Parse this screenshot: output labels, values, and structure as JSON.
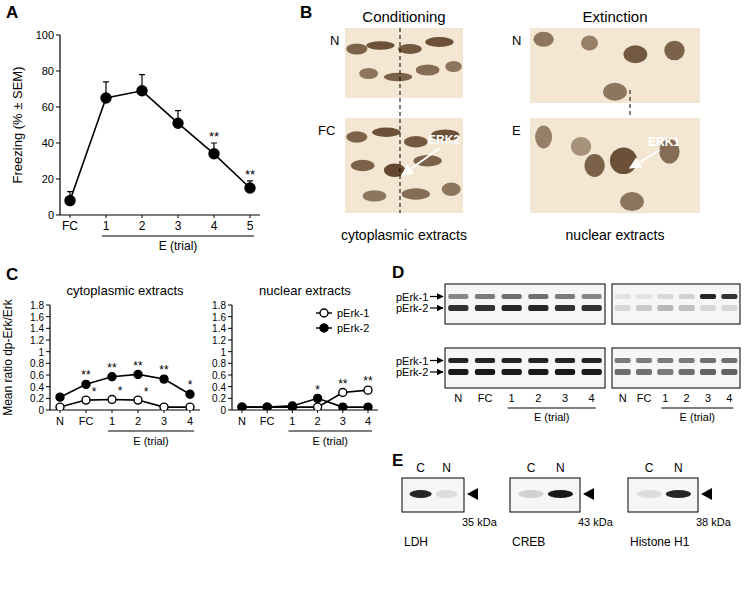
{
  "chart_data": [
    {
      "type": "line",
      "y_label": "Freezing (% ± SEM)",
      "categories": [
        "FC",
        "1",
        "2",
        "3",
        "4",
        "5"
      ],
      "category_group": {
        "label": "E (trial)",
        "from": "1",
        "to": "5"
      },
      "values": [
        8,
        65,
        69,
        51,
        34,
        15
      ],
      "errors": [
        5,
        9,
        9,
        7,
        6,
        4
      ],
      "color": "#000000",
      "marker": "circle",
      "line_style": "solid",
      "ylim": [
        0,
        100
      ],
      "yticks": [
        0,
        20,
        40,
        60,
        80,
        100
      ],
      "annotations": [
        {
          "text": "**",
          "category": "4"
        },
        {
          "text": "**",
          "category": "5"
        }
      ]
    },
    {
      "type": "line",
      "title": "cytoplasmic extracts",
      "y_label": "Mean ratio dp-Erk/Erk",
      "categories": [
        "N",
        "FC",
        "1",
        "2",
        "3",
        "4"
      ],
      "category_group": {
        "label": "E (trial)",
        "from": "1",
        "to": "4"
      },
      "ylim": [
        0,
        1.8
      ],
      "yticks": [
        0,
        0.2,
        0.4,
        0.6,
        0.8,
        1,
        1.2,
        1.4,
        1.6,
        1.8
      ],
      "series": [
        {
          "name": "pErk-1",
          "color": "#000000",
          "marker": "open-circle",
          "line_style": "solid",
          "values": [
            0.05,
            0.17,
            0.18,
            0.17,
            0.05,
            0.05
          ],
          "errors": [
            0.02,
            0.04,
            0.04,
            0.04,
            0.03,
            0.03
          ]
        },
        {
          "name": "pErk-2",
          "color": "#000000",
          "marker": "circle",
          "line_style": "solid",
          "values": [
            0.22,
            0.44,
            0.57,
            0.61,
            0.53,
            0.27
          ],
          "errors": [
            0.04,
            0.05,
            0.05,
            0.05,
            0.05,
            0.05
          ]
        }
      ],
      "annotations": [
        {
          "text": "**",
          "category": "FC",
          "series": "pErk-2"
        },
        {
          "text": "**",
          "category": "1",
          "series": "pErk-2"
        },
        {
          "text": "**",
          "category": "2",
          "series": "pErk-2"
        },
        {
          "text": "**",
          "category": "3",
          "series": "pErk-2"
        },
        {
          "text": "*",
          "category": "4",
          "series": "pErk-2"
        },
        {
          "text": "*",
          "category": "FC",
          "series": "pErk-1"
        },
        {
          "text": "*",
          "category": "1",
          "series": "pErk-1"
        },
        {
          "text": "*",
          "category": "2",
          "series": "pErk-1"
        }
      ]
    },
    {
      "type": "line",
      "title": "nuclear extracts",
      "categories": [
        "N",
        "FC",
        "1",
        "2",
        "3",
        "4"
      ],
      "category_group": {
        "label": "E (trial)",
        "from": "1",
        "to": "4"
      },
      "ylim": [
        0,
        1.8
      ],
      "yticks": [
        0,
        0.2,
        0.4,
        0.6,
        0.8,
        1,
        1.2,
        1.4,
        1.6,
        1.8
      ],
      "legend": "upper right",
      "series": [
        {
          "name": "pErk-1",
          "color": "#000000",
          "marker": "open-circle",
          "line_style": "solid",
          "values": [
            0.05,
            0.05,
            0.05,
            0.05,
            0.3,
            0.34
          ],
          "errors": [
            0.02,
            0.02,
            0.02,
            0.02,
            0.04,
            0.05
          ]
        },
        {
          "name": "pErk-2",
          "color": "#000000",
          "marker": "circle",
          "line_style": "solid",
          "values": [
            0.05,
            0.05,
            0.07,
            0.2,
            0.05,
            0.05
          ],
          "errors": [
            0.02,
            0.02,
            0.03,
            0.04,
            0.02,
            0.02
          ]
        }
      ],
      "annotations": [
        {
          "text": "*",
          "category": "2",
          "series": "pErk-2"
        },
        {
          "text": "**",
          "category": "3",
          "series": "pErk-1"
        },
        {
          "text": "**",
          "category": "4",
          "series": "pErk-1"
        }
      ]
    }
  ],
  "figure": {
    "panel_labels": [
      "A",
      "B",
      "C",
      "D",
      "E"
    ],
    "B": {
      "left_title": "Conditioning",
      "right_title": "Extinction",
      "left_rows": [
        "N",
        "FC"
      ],
      "right_rows": [
        "N",
        "E"
      ],
      "left_arrow": "ERK2",
      "right_arrow": "ERK1",
      "left_caption": "cytoplasmic extracts",
      "right_caption": "nuclear extracts"
    },
    "D": {
      "bands": [
        "pErk-1",
        "pErk-2"
      ],
      "lanes": [
        "N",
        "FC",
        "1",
        "2",
        "3",
        "4"
      ],
      "lane_group": "E (trial)"
    },
    "E": {
      "lanes": [
        "C",
        "N"
      ],
      "blots": [
        {
          "name": "LDH",
          "size": "35 kDa"
        },
        {
          "name": "CREB",
          "size": "43 kDa"
        },
        {
          "name": "Histone H1",
          "size": "38 kDa"
        }
      ]
    }
  }
}
